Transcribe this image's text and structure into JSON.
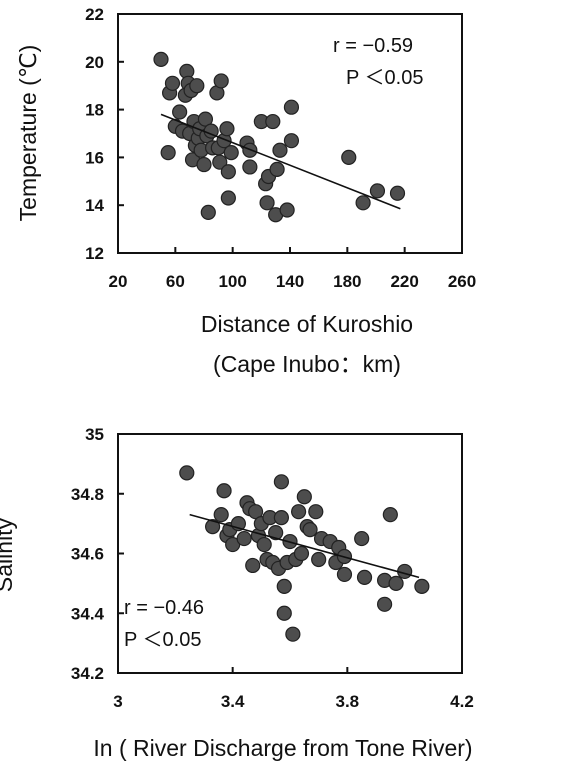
{
  "chart_data": [
    {
      "type": "scatter",
      "xlabel_line1": "Distance of Kuroshio",
      "xlabel_line2": "(Cape Inubo：km)",
      "ylabel": "Temperature (℃)",
      "xlim": [
        20,
        260
      ],
      "ylim": [
        12,
        22
      ],
      "xticks": [
        20,
        60,
        100,
        140,
        180,
        220,
        260
      ],
      "yticks": [
        12,
        14,
        16,
        18,
        20,
        22
      ],
      "annotation_r": "r = −0.59",
      "annotation_p": "P ＜0.05",
      "trendline": {
        "x": [
          50,
          217
        ],
        "y": [
          17.8,
          13.85
        ]
      },
      "points": [
        {
          "x": 50,
          "y": 20.1
        },
        {
          "x": 55,
          "y": 16.2
        },
        {
          "x": 56,
          "y": 18.7
        },
        {
          "x": 58,
          "y": 19.1
        },
        {
          "x": 60,
          "y": 17.3
        },
        {
          "x": 63,
          "y": 17.9
        },
        {
          "x": 65,
          "y": 17.1
        },
        {
          "x": 67,
          "y": 18.6
        },
        {
          "x": 68,
          "y": 19.6
        },
        {
          "x": 69,
          "y": 19.1
        },
        {
          "x": 70,
          "y": 17.0
        },
        {
          "x": 71,
          "y": 18.8
        },
        {
          "x": 72,
          "y": 15.9
        },
        {
          "x": 73,
          "y": 17.5
        },
        {
          "x": 74,
          "y": 16.5
        },
        {
          "x": 75,
          "y": 19.0
        },
        {
          "x": 76,
          "y": 16.8
        },
        {
          "x": 77,
          "y": 17.2
        },
        {
          "x": 78,
          "y": 16.3
        },
        {
          "x": 80,
          "y": 15.7
        },
        {
          "x": 81,
          "y": 17.6
        },
        {
          "x": 82,
          "y": 16.9
        },
        {
          "x": 83,
          "y": 13.7
        },
        {
          "x": 85,
          "y": 17.1
        },
        {
          "x": 86,
          "y": 16.4
        },
        {
          "x": 89,
          "y": 18.7
        },
        {
          "x": 90,
          "y": 16.4
        },
        {
          "x": 91,
          "y": 15.8
        },
        {
          "x": 92,
          "y": 19.2
        },
        {
          "x": 94,
          "y": 16.7
        },
        {
          "x": 96,
          "y": 17.2
        },
        {
          "x": 97,
          "y": 15.4
        },
        {
          "x": 97,
          "y": 14.3
        },
        {
          "x": 99,
          "y": 16.2
        },
        {
          "x": 110,
          "y": 16.6
        },
        {
          "x": 112,
          "y": 15.6
        },
        {
          "x": 112,
          "y": 16.3
        },
        {
          "x": 120,
          "y": 17.5
        },
        {
          "x": 123,
          "y": 14.9
        },
        {
          "x": 124,
          "y": 14.1
        },
        {
          "x": 125,
          "y": 15.2
        },
        {
          "x": 128,
          "y": 17.5
        },
        {
          "x": 130,
          "y": 13.6
        },
        {
          "x": 131,
          "y": 15.5
        },
        {
          "x": 133,
          "y": 16.3
        },
        {
          "x": 138,
          "y": 13.8
        },
        {
          "x": 141,
          "y": 18.1
        },
        {
          "x": 141,
          "y": 16.7
        },
        {
          "x": 181,
          "y": 16.0
        },
        {
          "x": 191,
          "y": 14.1
        },
        {
          "x": 201,
          "y": 14.6
        },
        {
          "x": 215,
          "y": 14.5
        }
      ]
    },
    {
      "type": "scatter",
      "xlabel": "In ( River Discharge from Tone River)",
      "ylabel": "Salinity",
      "xlim": [
        3,
        4.2
      ],
      "ylim": [
        34.2,
        35
      ],
      "xticks": [
        3,
        3.4,
        3.8,
        4.2
      ],
      "yticks": [
        34.2,
        34.4,
        34.6,
        34.8,
        35
      ],
      "annotation_r": "r = −0.46",
      "annotation_p": "P ＜0.05",
      "trendline": {
        "x": [
          3.25,
          4.05
        ],
        "y": [
          34.73,
          34.52
        ]
      },
      "points": [
        {
          "x": 3.24,
          "y": 34.87
        },
        {
          "x": 3.33,
          "y": 34.69
        },
        {
          "x": 3.36,
          "y": 34.73
        },
        {
          "x": 3.37,
          "y": 34.81
        },
        {
          "x": 3.38,
          "y": 34.66
        },
        {
          "x": 3.39,
          "y": 34.68
        },
        {
          "x": 3.4,
          "y": 34.63
        },
        {
          "x": 3.42,
          "y": 34.7
        },
        {
          "x": 3.44,
          "y": 34.65
        },
        {
          "x": 3.45,
          "y": 34.77
        },
        {
          "x": 3.46,
          "y": 34.75
        },
        {
          "x": 3.47,
          "y": 34.56
        },
        {
          "x": 3.48,
          "y": 34.74
        },
        {
          "x": 3.49,
          "y": 34.66
        },
        {
          "x": 3.5,
          "y": 34.7
        },
        {
          "x": 3.51,
          "y": 34.63
        },
        {
          "x": 3.52,
          "y": 34.58
        },
        {
          "x": 3.53,
          "y": 34.72
        },
        {
          "x": 3.54,
          "y": 34.57
        },
        {
          "x": 3.55,
          "y": 34.67
        },
        {
          "x": 3.56,
          "y": 34.55
        },
        {
          "x": 3.57,
          "y": 34.84
        },
        {
          "x": 3.57,
          "y": 34.72
        },
        {
          "x": 3.58,
          "y": 34.49
        },
        {
          "x": 3.58,
          "y": 34.4
        },
        {
          "x": 3.59,
          "y": 34.57
        },
        {
          "x": 3.6,
          "y": 34.64
        },
        {
          "x": 3.61,
          "y": 34.33
        },
        {
          "x": 3.62,
          "y": 34.58
        },
        {
          "x": 3.63,
          "y": 34.74
        },
        {
          "x": 3.64,
          "y": 34.6
        },
        {
          "x": 3.65,
          "y": 34.79
        },
        {
          "x": 3.66,
          "y": 34.69
        },
        {
          "x": 3.67,
          "y": 34.68
        },
        {
          "x": 3.69,
          "y": 34.74
        },
        {
          "x": 3.7,
          "y": 34.58
        },
        {
          "x": 3.71,
          "y": 34.65
        },
        {
          "x": 3.74,
          "y": 34.64
        },
        {
          "x": 3.76,
          "y": 34.57
        },
        {
          "x": 3.77,
          "y": 34.62
        },
        {
          "x": 3.79,
          "y": 34.53
        },
        {
          "x": 3.79,
          "y": 34.59
        },
        {
          "x": 3.85,
          "y": 34.65
        },
        {
          "x": 3.86,
          "y": 34.52
        },
        {
          "x": 3.93,
          "y": 34.43
        },
        {
          "x": 3.93,
          "y": 34.51
        },
        {
          "x": 3.95,
          "y": 34.73
        },
        {
          "x": 3.97,
          "y": 34.5
        },
        {
          "x": 4.0,
          "y": 34.54
        },
        {
          "x": 4.06,
          "y": 34.49
        }
      ]
    }
  ]
}
